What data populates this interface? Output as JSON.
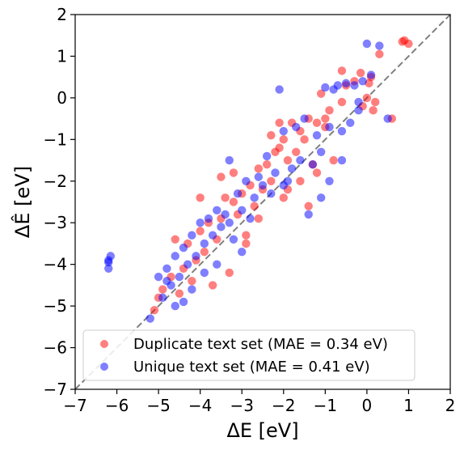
{
  "chart_data": {
    "type": "scatter",
    "title": "",
    "xlabel": "ΔE [eV]",
    "ylabel": "ΔÊ [eV]",
    "xlim": [
      -7,
      2
    ],
    "ylim": [
      -7,
      2
    ],
    "xticks": [
      "−7",
      "−6",
      "−5",
      "−4",
      "−3",
      "−2",
      "−1",
      "0",
      "1",
      "2"
    ],
    "yticks": [
      "−7",
      "−6",
      "−5",
      "−4",
      "−3",
      "−2",
      "−1",
      "0",
      "1",
      "2"
    ],
    "reference_line": "y = x",
    "legend_position": "lower-right",
    "grid": false,
    "series": [
      {
        "name": "Duplicate text set (MAE = 0.34 eV)",
        "color": "#ff0000",
        "points": [
          [
            0.9,
            1.38
          ],
          [
            1.0,
            1.3
          ],
          [
            0.85,
            1.35
          ],
          [
            0.3,
            1.05
          ],
          [
            0.1,
            0.5
          ],
          [
            0.05,
            0.35
          ],
          [
            -0.15,
            0.6
          ],
          [
            -0.3,
            0.4
          ],
          [
            0.2,
            -0.1
          ],
          [
            0.15,
            -0.3
          ],
          [
            0.0,
            0.0
          ],
          [
            -0.1,
            -0.2
          ],
          [
            -0.5,
            0.3
          ],
          [
            -0.6,
            -0.1
          ],
          [
            -0.9,
            -0.3
          ],
          [
            -1.0,
            -0.5
          ],
          [
            -1.1,
            0.1
          ],
          [
            -1.2,
            -0.6
          ],
          [
            -1.4,
            -0.5
          ],
          [
            -1.6,
            -0.8
          ],
          [
            -1.8,
            -0.6
          ],
          [
            -2.1,
            -0.6
          ],
          [
            -1.5,
            -1.0
          ],
          [
            -1.7,
            -1.3
          ],
          [
            -1.9,
            -1.5
          ],
          [
            -2.0,
            -1.0
          ],
          [
            -2.2,
            -1.3
          ],
          [
            -2.4,
            -1.6
          ],
          [
            -2.6,
            -1.7
          ],
          [
            -2.3,
            -2.0
          ],
          [
            -2.5,
            -2.2
          ],
          [
            -2.8,
            -2.1
          ],
          [
            -3.0,
            -2.3
          ],
          [
            -3.2,
            -2.5
          ],
          [
            -2.7,
            -2.6
          ],
          [
            -3.4,
            -2.4
          ],
          [
            -3.1,
            -2.8
          ],
          [
            -3.5,
            -2.9
          ],
          [
            -3.8,
            -3.0
          ],
          [
            -4.0,
            -3.2
          ],
          [
            -4.3,
            -3.5
          ],
          [
            -4.6,
            -3.4
          ],
          [
            -3.6,
            -3.4
          ],
          [
            -3.9,
            -3.7
          ],
          [
            -4.1,
            -3.9
          ],
          [
            -4.4,
            -4.1
          ],
          [
            -4.7,
            -4.3
          ],
          [
            -4.9,
            -4.6
          ],
          [
            -5.0,
            -4.8
          ],
          [
            -5.1,
            -5.1
          ],
          [
            -4.5,
            -4.7
          ],
          [
            -4.2,
            -4.4
          ],
          [
            -3.3,
            -4.2
          ],
          [
            -3.7,
            -4.5
          ],
          [
            -2.9,
            -3.3
          ],
          [
            -2.6,
            -2.9
          ],
          [
            -1.3,
            -1.6
          ],
          [
            -0.8,
            -1.5
          ],
          [
            -1.4,
            -2.6
          ],
          [
            -2.0,
            -2.4
          ],
          [
            -1.6,
            -2.0
          ],
          [
            -1.2,
            -1.8
          ],
          [
            0.6,
            -0.5
          ],
          [
            -0.6,
            0.65
          ],
          [
            -2.3,
            -0.9
          ],
          [
            -3.2,
            -1.8
          ],
          [
            -4.0,
            -2.4
          ],
          [
            -3.5,
            -1.9
          ],
          [
            -2.9,
            -3.5
          ],
          [
            -1.9,
            -2.2
          ],
          [
            -2.1,
            -1.2
          ],
          [
            -1.0,
            -0.7
          ]
        ]
      },
      {
        "name": "Unique text set (MAE = 0.41 eV)",
        "color": "#0000ff",
        "points": [
          [
            0.0,
            1.3
          ],
          [
            0.3,
            1.25
          ],
          [
            0.1,
            0.55
          ],
          [
            -0.1,
            0.4
          ],
          [
            -0.3,
            0.3
          ],
          [
            -0.5,
            0.35
          ],
          [
            -0.7,
            0.3
          ],
          [
            -0.8,
            0.2
          ],
          [
            -1.0,
            0.25
          ],
          [
            -2.1,
            0.2
          ],
          [
            0.5,
            -0.5
          ],
          [
            -0.2,
            -0.3
          ],
          [
            -0.4,
            -0.6
          ],
          [
            -0.6,
            -0.8
          ],
          [
            -0.9,
            -0.7
          ],
          [
            -1.2,
            -0.9
          ],
          [
            -1.5,
            -0.5
          ],
          [
            -1.7,
            -0.7
          ],
          [
            -2.0,
            -0.8
          ],
          [
            -1.1,
            -1.3
          ],
          [
            -1.3,
            -1.6
          ],
          [
            -1.6,
            -1.5
          ],
          [
            -1.8,
            -1.7
          ],
          [
            -2.2,
            -1.8
          ],
          [
            -2.4,
            -1.4
          ],
          [
            -2.6,
            -1.9
          ],
          [
            -2.9,
            -2.0
          ],
          [
            -3.1,
            -2.3
          ],
          [
            -3.3,
            -1.5
          ],
          [
            -3.6,
            -2.7
          ],
          [
            -3.8,
            -2.9
          ],
          [
            -3.4,
            -2.8
          ],
          [
            -3.0,
            -2.7
          ],
          [
            -2.7,
            -2.4
          ],
          [
            -2.5,
            -2.1
          ],
          [
            -2.3,
            -2.3
          ],
          [
            -4.0,
            -3.0
          ],
          [
            -4.2,
            -3.3
          ],
          [
            -4.4,
            -3.6
          ],
          [
            -4.6,
            -3.8
          ],
          [
            -4.8,
            -4.1
          ],
          [
            -5.0,
            -4.3
          ],
          [
            -4.9,
            -4.8
          ],
          [
            -4.7,
            -4.5
          ],
          [
            -4.5,
            -4.3
          ],
          [
            -4.3,
            -4.0
          ],
          [
            -4.1,
            -3.8
          ],
          [
            -3.9,
            -3.5
          ],
          [
            -3.7,
            -3.3
          ],
          [
            -3.5,
            -3.1
          ],
          [
            -3.2,
            -3.4
          ],
          [
            -3.0,
            -3.7
          ],
          [
            -3.6,
            -4.0
          ],
          [
            -3.9,
            -4.2
          ],
          [
            -4.2,
            -4.6
          ],
          [
            -4.4,
            -4.9
          ],
          [
            -4.6,
            -5.0
          ],
          [
            -5.2,
            -5.3
          ],
          [
            -4.8,
            -4.4
          ],
          [
            -6.2,
            -3.9
          ],
          [
            -6.15,
            -3.8
          ],
          [
            -6.2,
            -4.1
          ],
          [
            -6.2,
            -3.95
          ],
          [
            -1.4,
            -2.8
          ],
          [
            -1.1,
            -2.4
          ],
          [
            -0.9,
            -2.0
          ],
          [
            -0.6,
            -1.5
          ],
          [
            -2.0,
            -2.1
          ],
          [
            -1.9,
            -2.0
          ],
          [
            -2.8,
            -2.9
          ],
          [
            -3.3,
            -3.0
          ],
          [
            -0.2,
            -0.1
          ]
        ]
      }
    ]
  }
}
